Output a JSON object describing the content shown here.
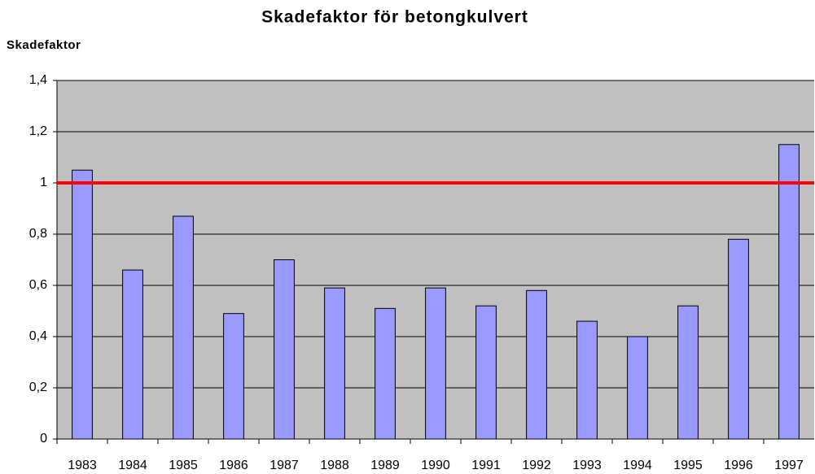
{
  "chart_data": {
    "type": "bar",
    "title": "Skadefaktor för betongkulvert",
    "y_label": "Skadefaktor",
    "categories": [
      "1983",
      "1984",
      "1985",
      "1986",
      "1987",
      "1988",
      "1989",
      "1990",
      "1991",
      "1992",
      "1993",
      "1994",
      "1995",
      "1996",
      "1997"
    ],
    "values": [
      1.05,
      0.66,
      0.87,
      0.49,
      0.7,
      0.59,
      0.51,
      0.59,
      0.52,
      0.58,
      0.46,
      0.4,
      0.52,
      0.78,
      1.15
    ],
    "color": "#9999ff",
    "ylim": [
      0,
      1.4
    ],
    "yticks": [
      0,
      {
        "value": 0.2,
        "label": "0,2"
      },
      {
        "value": 0.4,
        "label": "0,4"
      },
      {
        "value": 0.6,
        "label": "0,6"
      },
      {
        "value": 0.8,
        "label": "0,8"
      },
      1,
      {
        "value": 1.2,
        "label": "1,2"
      },
      {
        "value": 1.4,
        "label": "1,4"
      }
    ],
    "grid": true,
    "reference_line": {
      "value": 1,
      "color": "#ff0000"
    }
  }
}
